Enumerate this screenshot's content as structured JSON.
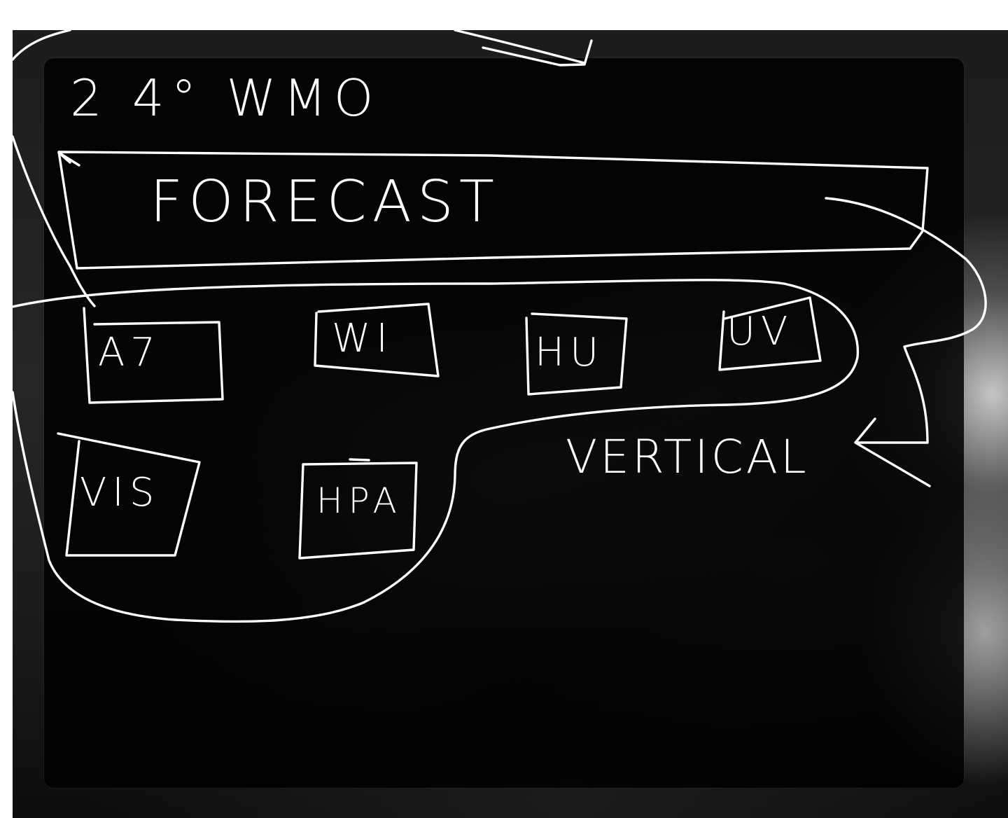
{
  "title": "2 4° WMO",
  "header": {
    "label": "FORECAST"
  },
  "tiles": [
    {
      "label": "A7"
    },
    {
      "label": "WI"
    },
    {
      "label": "HU"
    },
    {
      "label": "UV"
    },
    {
      "label": "VIS"
    },
    {
      "label": "HPA"
    }
  ],
  "annotation": {
    "label": "VERTICAL"
  },
  "colors": {
    "ink": "#ffffff",
    "panel": "#000000",
    "page": "#ffffff"
  }
}
